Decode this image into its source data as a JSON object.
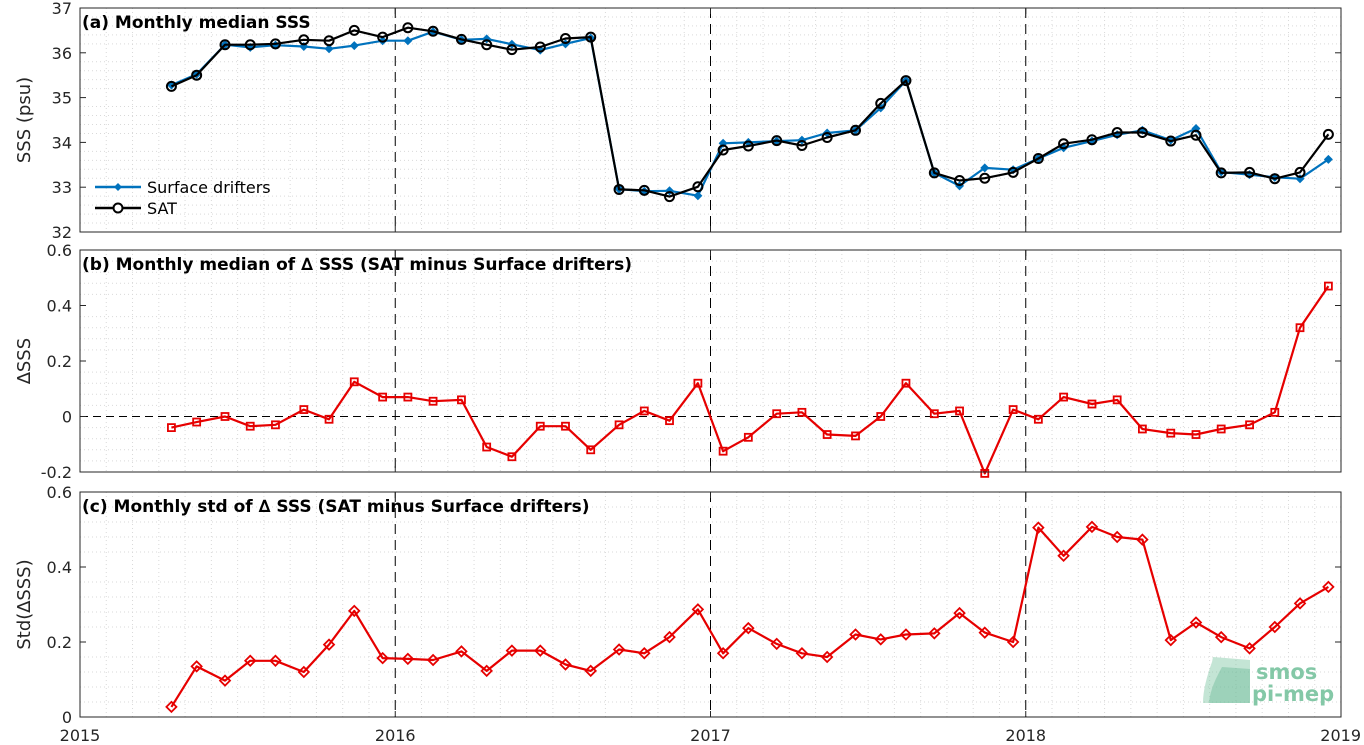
{
  "colors": {
    "drifters": "#0072bd",
    "sat": "#000000",
    "delta": "#e60000",
    "grid": "#d9d9d9",
    "axis": "#262626",
    "logo": "#5fb58f"
  },
  "logo": {
    "line1": "smos",
    "line2": "pi-mep"
  },
  "x_axis": {
    "range": [
      2015,
      2019
    ],
    "ticks": [
      2015,
      2016,
      2017,
      2018,
      2019
    ],
    "tick_labels": [
      "2015",
      "2016",
      "2017",
      "2018",
      "2019"
    ],
    "year_dividers": [
      2016,
      2017,
      2018
    ]
  },
  "chart_data": [
    {
      "type": "line",
      "title": "(a) Monthly median SSS",
      "ylabel": "SSS (psu)",
      "ylim": [
        32,
        37
      ],
      "yticks": [
        32,
        33,
        34,
        35,
        36,
        37
      ],
      "ytick_labels": [
        "32",
        "33",
        "34",
        "35",
        "36",
        "37"
      ],
      "grid": true,
      "legend": "bottom-left",
      "legend_entries": [
        "Surface drifters",
        "SAT"
      ],
      "x": [
        2015.29,
        2015.37,
        2015.46,
        2015.54,
        2015.62,
        2015.71,
        2015.79,
        2015.87,
        2015.96,
        2016.04,
        2016.12,
        2016.21,
        2016.29,
        2016.37,
        2016.46,
        2016.54,
        2016.62,
        2016.71,
        2016.79,
        2016.87,
        2016.96,
        2017.04,
        2017.12,
        2017.21,
        2017.29,
        2017.37,
        2017.46,
        2017.54,
        2017.62,
        2017.71,
        2017.79,
        2017.87,
        2017.96,
        2018.04,
        2018.12,
        2018.21,
        2018.29,
        2018.37,
        2018.46,
        2018.54,
        2018.62,
        2018.71,
        2018.79,
        2018.87,
        2018.96
      ],
      "series": [
        {
          "name": "Surface drifters",
          "marker": "diamond-filled",
          "values": [
            35.28,
            35.52,
            36.18,
            36.12,
            36.17,
            36.14,
            36.09,
            36.16,
            36.27,
            36.27,
            36.47,
            36.29,
            36.31,
            36.19,
            36.06,
            36.2,
            36.33,
            32.96,
            32.91,
            32.92,
            32.81,
            33.98,
            34.0,
            34.03,
            34.05,
            34.21,
            34.27,
            34.77,
            35.38,
            33.32,
            33.03,
            33.43,
            33.39,
            33.64,
            33.88,
            34.03,
            34.17,
            34.27,
            34.05,
            34.31,
            33.34,
            33.28,
            33.22,
            33.19,
            33.62
          ]
        },
        {
          "name": "SAT",
          "marker": "circle-open",
          "values": [
            35.25,
            35.5,
            36.18,
            36.18,
            36.2,
            36.29,
            36.27,
            36.5,
            36.35,
            36.56,
            36.48,
            36.3,
            36.18,
            36.07,
            36.13,
            36.32,
            36.35,
            32.95,
            32.93,
            32.79,
            33.01,
            33.83,
            33.92,
            34.04,
            33.93,
            34.11,
            34.27,
            34.87,
            35.38,
            33.32,
            33.15,
            33.2,
            33.33,
            33.64,
            33.97,
            34.06,
            34.22,
            34.22,
            34.03,
            34.16,
            33.32,
            33.33,
            33.19,
            33.33,
            34.18
          ]
        }
      ]
    },
    {
      "type": "line",
      "title": "(b) Monthly median of ∆ SSS (SAT minus Surface drifters)",
      "ylabel": "∆SSS",
      "ylim": [
        -0.2,
        0.6
      ],
      "yticks": [
        -0.2,
        0,
        0.2,
        0.4,
        0.6
      ],
      "ytick_labels": [
        "-0.2",
        "0",
        "0.2",
        "0.4",
        "0.6"
      ],
      "grid": true,
      "zero_line": true,
      "x": [
        2015.29,
        2015.37,
        2015.46,
        2015.54,
        2015.62,
        2015.71,
        2015.79,
        2015.87,
        2015.96,
        2016.04,
        2016.12,
        2016.21,
        2016.29,
        2016.37,
        2016.46,
        2016.54,
        2016.62,
        2016.71,
        2016.79,
        2016.87,
        2016.96,
        2017.04,
        2017.12,
        2017.21,
        2017.29,
        2017.37,
        2017.46,
        2017.54,
        2017.62,
        2017.71,
        2017.79,
        2017.87,
        2017.96,
        2018.04,
        2018.12,
        2018.21,
        2018.29,
        2018.37,
        2018.46,
        2018.54,
        2018.62,
        2018.71,
        2018.79,
        2018.87,
        2018.96
      ],
      "series": [
        {
          "marker": "square-open",
          "values": [
            -0.04,
            -0.02,
            0.0,
            -0.035,
            -0.03,
            0.025,
            -0.01,
            0.125,
            0.07,
            0.07,
            0.055,
            0.06,
            -0.11,
            -0.145,
            -0.035,
            -0.035,
            -0.12,
            -0.03,
            0.02,
            -0.015,
            0.12,
            -0.125,
            -0.075,
            0.01,
            0.015,
            -0.065,
            -0.07,
            0.0,
            0.12,
            0.01,
            0.02,
            -0.205,
            0.025,
            -0.01,
            0.07,
            0.045,
            0.06,
            -0.045,
            -0.06,
            -0.065,
            -0.045,
            -0.03,
            0.015,
            0.32,
            0.47
          ]
        }
      ]
    },
    {
      "type": "line",
      "title": "(c) Monthly std of ∆ SSS (SAT minus Surface drifters)",
      "ylabel": "Std(∆SSS)",
      "ylim": [
        0,
        0.6
      ],
      "yticks": [
        0,
        0.2,
        0.4,
        0.6
      ],
      "ytick_labels": [
        "0",
        "0.2",
        "0.4",
        "0.6"
      ],
      "grid": true,
      "x": [
        2015.29,
        2015.37,
        2015.46,
        2015.54,
        2015.62,
        2015.71,
        2015.79,
        2015.87,
        2015.96,
        2016.04,
        2016.12,
        2016.21,
        2016.29,
        2016.37,
        2016.46,
        2016.54,
        2016.62,
        2016.71,
        2016.79,
        2016.87,
        2016.96,
        2017.04,
        2017.12,
        2017.21,
        2017.29,
        2017.37,
        2017.46,
        2017.54,
        2017.62,
        2017.71,
        2017.79,
        2017.87,
        2017.96,
        2018.04,
        2018.12,
        2018.21,
        2018.29,
        2018.37,
        2018.46,
        2018.54,
        2018.62,
        2018.71,
        2018.79,
        2018.87,
        2018.96
      ],
      "series": [
        {
          "marker": "diamond-open",
          "values": [
            0.027,
            0.135,
            0.097,
            0.15,
            0.15,
            0.12,
            0.193,
            0.283,
            0.157,
            0.155,
            0.152,
            0.175,
            0.123,
            0.177,
            0.177,
            0.14,
            0.123,
            0.18,
            0.17,
            0.213,
            0.287,
            0.17,
            0.237,
            0.195,
            0.17,
            0.16,
            0.22,
            0.207,
            0.22,
            0.223,
            0.277,
            0.225,
            0.2,
            0.505,
            0.43,
            0.507,
            0.48,
            0.473,
            0.205,
            0.252,
            0.213,
            0.183,
            0.24,
            0.303,
            0.347
          ]
        }
      ]
    }
  ]
}
